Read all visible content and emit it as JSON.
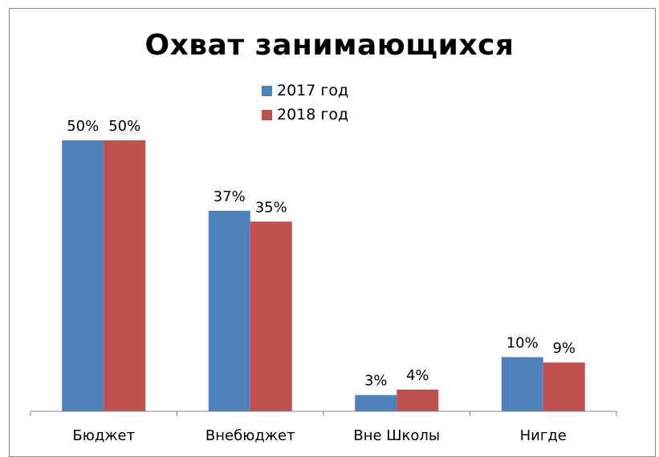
{
  "chart_data": {
    "type": "bar",
    "title": "Охват занимающихся",
    "categories": [
      "Бюджет",
      "Внебюджет",
      "Вне Школы",
      "Нигде"
    ],
    "series": [
      {
        "name": "2017 год",
        "color": "#4f81bd",
        "values": [
          50,
          37,
          3,
          10
        ],
        "labels": [
          "50%",
          "37%",
          "3%",
          "10%"
        ]
      },
      {
        "name": "2018 год",
        "color": "#c0504d",
        "values": [
          50,
          35,
          4,
          9
        ],
        "labels": [
          "50%",
          "35%",
          "4%",
          "9%"
        ]
      }
    ],
    "ylim": [
      0,
      50
    ],
    "unit": "%",
    "grid": false,
    "legend_position": "top-center"
  }
}
